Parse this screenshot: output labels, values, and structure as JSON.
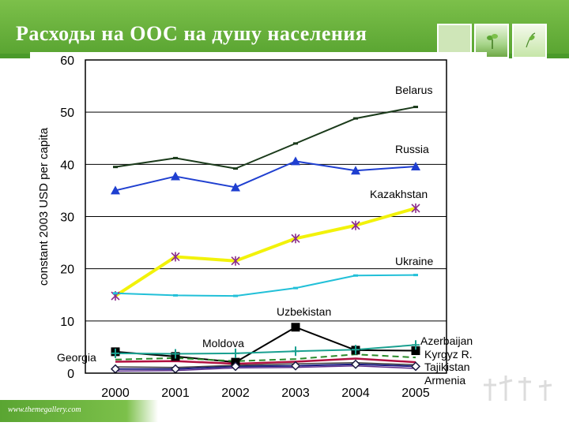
{
  "slide": {
    "title": "Расходы на ООС на душу населения",
    "footer": "www.themegallery.com"
  },
  "colors": {
    "header_green": "#6cb43c",
    "belarus": "#1a3a1a",
    "russia": "#1f3fd0",
    "kazakhstan": "#f2f20a",
    "kazakhstan_marker": "#8a2a8a",
    "ukraine": "#22c0d8",
    "uzbekistan": "#000000",
    "azerbaijan": "#1aa090",
    "kyrgyz": "#2a8a2a",
    "moldova": "#b01040",
    "tajikistan": "#1a1a80",
    "armenia": "#404040",
    "georgia": "#5a2a8a"
  },
  "chart_data": {
    "type": "line",
    "title": "",
    "xlabel": "",
    "ylabel": "constant 2003 USD per capita",
    "ylim": [
      0,
      60
    ],
    "yticks": [
      "0",
      "10",
      "20",
      "30",
      "40",
      "50",
      "60"
    ],
    "categories": [
      "2000",
      "2001",
      "2002",
      "2003",
      "2004",
      "2005"
    ],
    "grid": true,
    "series": [
      {
        "name": "Belarus",
        "values": [
          39.5,
          41.2,
          39.2,
          44.0,
          48.8,
          51.0
        ],
        "marker": "dash"
      },
      {
        "name": "Russia",
        "values": [
          35.0,
          37.7,
          35.6,
          40.6,
          38.8,
          39.6
        ],
        "marker": "triangle"
      },
      {
        "name": "Kazakhstan",
        "values": [
          14.8,
          22.3,
          21.5,
          25.8,
          28.3,
          31.6
        ],
        "marker": "star"
      },
      {
        "name": "Ukraine",
        "values": [
          15.3,
          14.9,
          14.8,
          16.3,
          18.7,
          18.8
        ],
        "marker": "dash"
      },
      {
        "name": "Uzbekistan",
        "values": [
          4.1,
          3.2,
          2.1,
          8.8,
          4.4,
          4.3
        ],
        "marker": "square"
      },
      {
        "name": "Azerbaijan",
        "values": [
          3.8,
          3.7,
          3.8,
          4.2,
          4.5,
          5.4
        ],
        "marker": "plus"
      },
      {
        "name": "Kyrgyz R.",
        "values": [
          2.6,
          2.9,
          2.3,
          2.7,
          3.6,
          3.0
        ],
        "marker": "none"
      },
      {
        "name": "Moldova",
        "values": [
          2.2,
          2.3,
          1.8,
          2.2,
          2.8,
          2.1
        ],
        "marker": "none"
      },
      {
        "name": "Tajikistan",
        "values": [
          0.8,
          0.8,
          1.3,
          1.4,
          1.7,
          1.3
        ],
        "marker": "diamond"
      },
      {
        "name": "Armenia",
        "values": [
          1.2,
          1.1,
          1.5,
          1.8,
          2.0,
          1.6
        ],
        "marker": "none"
      },
      {
        "name": "Georgia",
        "values": [
          0.4,
          0.5,
          1.0,
          1.1,
          1.4,
          0.9
        ],
        "marker": "none"
      }
    ],
    "labels": {
      "Belarus": "Belarus",
      "Russia": "Russia",
      "Kazakhstan": "Kazakhstan",
      "Ukraine": "Ukraine",
      "Uzbekistan": "Uzbekistan",
      "Moldova": "Moldova",
      "Georgia": "Georgia",
      "Azerbaijan": "Azerbaijan",
      "Kyrgyz": "Kyrgyz R.",
      "Tajikistan": "Tajikistan",
      "Armenia": "Armenia"
    }
  }
}
